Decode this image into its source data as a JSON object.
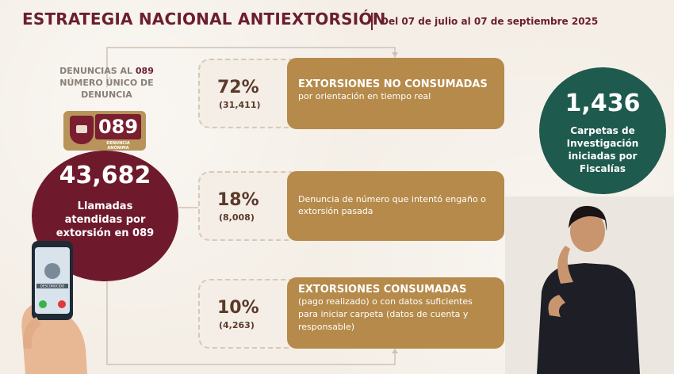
{
  "header": {
    "title": "ESTRATEGIA NACIONAL ANTIEXTORSIÓN",
    "date_range": "Del 07 de julio al 07 de septiembre 2025"
  },
  "left": {
    "den_line1": "DENUNCIAS AL",
    "den_num": "089",
    "den_line2": "NÚMERO ÚNICO DE",
    "den_line3": "DENUNCIA",
    "badge_number": "089",
    "badge_sub": "DENUNCIA ANÓNIMA",
    "total": "43,682",
    "total_desc": "Llamadas atendidas por extorsión en 089",
    "phone_caller": "DESCONOCIDO"
  },
  "items": [
    {
      "pct": "72%",
      "count": "(31,411)",
      "heading": "EXTORSIONES NO CONSUMADAS",
      "body": "por orientación en tiempo real"
    },
    {
      "pct": "18%",
      "count": "(8,008)",
      "heading": "",
      "body": "Denuncia de número que intentó engaño o extorsión pasada"
    },
    {
      "pct": "10%",
      "count": "(4,263)",
      "heading": "EXTORSIONES CONSUMADAS",
      "body": "(pago realizado) o con datos suficientes para iniciar carpeta (datos de cuenta y responsable)"
    }
  ],
  "right": {
    "total": "1,436",
    "desc": "Carpetas de Investigación iniciadas por Fiscalías"
  },
  "colors": {
    "maroon": "#6e1a2c",
    "gold": "#b68a4a",
    "green": "#1e5a4d"
  }
}
